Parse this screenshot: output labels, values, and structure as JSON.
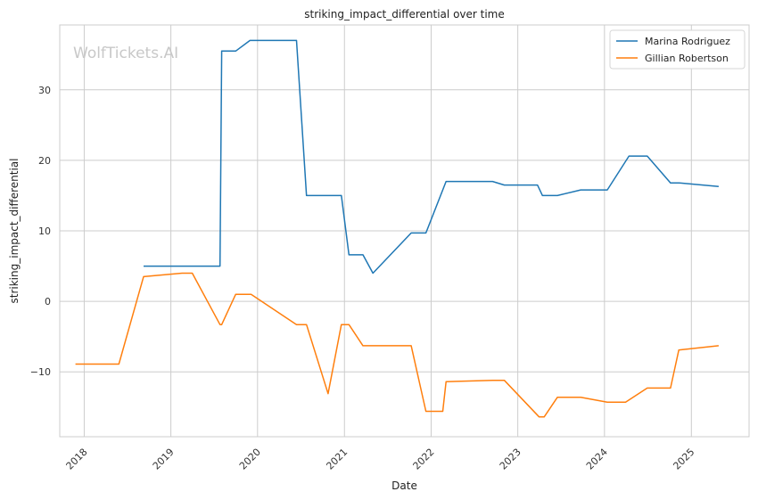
{
  "chart_data": {
    "type": "line",
    "title": "striking_impact_differential over time",
    "xlabel": "Date",
    "ylabel": "striking_impact_differential",
    "watermark": "WolfTickets.AI",
    "x_ticks": [
      "2018",
      "2019",
      "2020",
      "2021",
      "2022",
      "2023",
      "2024",
      "2025"
    ],
    "y_ticks": [
      "−10",
      "0",
      "10",
      "20",
      "30"
    ],
    "y_tick_values": [
      -10,
      0,
      10,
      20,
      30
    ],
    "xlim": [
      "2017-09-20",
      "2025-09-01"
    ],
    "ylim": [
      -19.2,
      39.2
    ],
    "grid": true,
    "legend_position": "top-right",
    "series": [
      {
        "name": "Marina Rodriguez",
        "color": "#1f77b4",
        "points": [
          [
            "2018-09-08",
            5.0
          ],
          [
            "2019-07-27",
            5.0
          ],
          [
            "2019-08-03",
            35.5
          ],
          [
            "2019-10-01",
            35.5
          ],
          [
            "2019-11-30",
            37.0
          ],
          [
            "2020-06-13",
            37.0
          ],
          [
            "2020-07-25",
            15.0
          ],
          [
            "2020-12-19",
            15.0
          ],
          [
            "2021-01-20",
            6.6
          ],
          [
            "2021-03-20",
            6.6
          ],
          [
            "2021-05-01",
            4.0
          ],
          [
            "2021-10-09",
            9.7
          ],
          [
            "2021-12-10",
            9.7
          ],
          [
            "2022-03-05",
            17.0
          ],
          [
            "2022-09-17",
            17.0
          ],
          [
            "2022-11-05",
            16.5
          ],
          [
            "2023-03-25",
            16.5
          ],
          [
            "2023-04-15",
            15.0
          ],
          [
            "2023-06-17",
            15.0
          ],
          [
            "2023-09-23",
            15.8
          ],
          [
            "2024-01-13",
            15.8
          ],
          [
            "2024-04-13",
            20.6
          ],
          [
            "2024-06-29",
            20.6
          ],
          [
            "2024-10-05",
            16.8
          ],
          [
            "2024-11-09",
            16.8
          ],
          [
            "2025-04-26",
            16.3
          ]
        ]
      },
      {
        "name": "Gillian Robertson",
        "color": "#ff7f0e",
        "points": [
          [
            "2017-11-25",
            -8.9
          ],
          [
            "2018-05-27",
            -8.9
          ],
          [
            "2018-09-08",
            3.5
          ],
          [
            "2019-02-17",
            4.0
          ],
          [
            "2019-04-01",
            4.0
          ],
          [
            "2019-07-27",
            -3.3
          ],
          [
            "2019-08-03",
            -3.3
          ],
          [
            "2019-10-01",
            1.0
          ],
          [
            "2019-12-05",
            1.0
          ],
          [
            "2020-06-13",
            -3.3
          ],
          [
            "2020-07-25",
            -3.3
          ],
          [
            "2020-10-24",
            -13.1
          ],
          [
            "2020-12-19",
            -3.3
          ],
          [
            "2021-01-20",
            -3.3
          ],
          [
            "2021-03-20",
            -6.3
          ],
          [
            "2021-10-09",
            -6.3
          ],
          [
            "2021-12-10",
            -15.6
          ],
          [
            "2022-02-19",
            -15.6
          ],
          [
            "2022-03-05",
            -11.4
          ],
          [
            "2022-09-17",
            -11.2
          ],
          [
            "2022-11-05",
            -11.2
          ],
          [
            "2023-04-01",
            -16.4
          ],
          [
            "2023-04-22",
            -16.4
          ],
          [
            "2023-06-17",
            -13.6
          ],
          [
            "2023-09-23",
            -13.6
          ],
          [
            "2024-01-13",
            -14.3
          ],
          [
            "2024-03-30",
            -14.3
          ],
          [
            "2024-06-29",
            -12.3
          ],
          [
            "2024-10-05",
            -12.3
          ],
          [
            "2024-11-09",
            -6.9
          ],
          [
            "2025-04-26",
            -6.3
          ]
        ]
      }
    ]
  }
}
